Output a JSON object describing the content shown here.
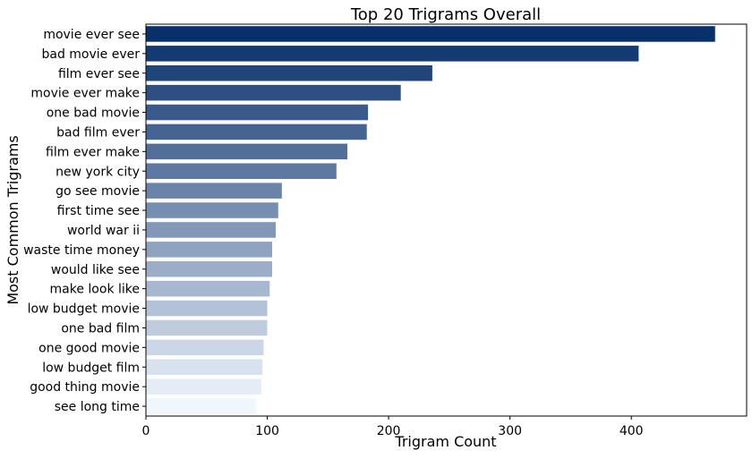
{
  "chart_data": {
    "type": "bar",
    "orientation": "horizontal",
    "title": "Top 20 Trigrams Overall",
    "xlabel": "Trigram Count",
    "ylabel": "Most Common Trigrams",
    "xlim": [
      0,
      495
    ],
    "xticks": [
      0,
      100,
      200,
      300,
      400
    ],
    "grid": false,
    "colormap": "Blues (dark to light)",
    "color_start": "#08306b",
    "color_end": "#f0f6fd",
    "categories": [
      "movie ever see",
      "bad movie ever",
      "film ever see",
      "movie ever make",
      "one bad movie",
      "bad film ever",
      "film ever make",
      "new york city",
      "go see movie",
      "first time see",
      "world war ii",
      "waste time money",
      "would like see",
      "make look like",
      "low budget movie",
      "one bad film",
      "one good movie",
      "low budget film",
      "good thing movie",
      "see long time"
    ],
    "values": [
      469,
      406,
      236,
      210,
      183,
      182,
      166,
      157,
      112,
      109,
      107,
      104,
      104,
      102,
      100,
      100,
      97,
      96,
      95,
      91
    ]
  }
}
